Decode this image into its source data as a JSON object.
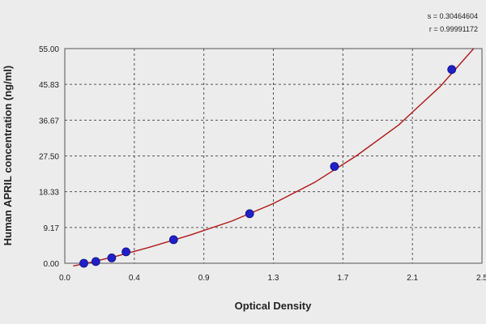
{
  "chart_data": {
    "type": "scatter",
    "title": "",
    "xlabel": "Optical Density",
    "ylabel": "Human APRIL concentration (ng/ml)",
    "xlim": [
      0.0,
      2.5
    ],
    "ylim": [
      0.0,
      55.0
    ],
    "x_tick_labels": [
      "0.0",
      "0.4",
      "0.9",
      "1.3",
      "1.7",
      "2.1",
      "2.5"
    ],
    "y_tick_labels": [
      "0.00",
      "9.17",
      "18.33",
      "27.50",
      "36.67",
      "45.83",
      "55.00"
    ],
    "grid": true,
    "stats": {
      "s_label": "s = 0.30464604",
      "r_label": "r = 0.99991172"
    },
    "series": [
      {
        "points": [
          {
            "x": 0.114,
            "y": 0.0
          },
          {
            "x": 0.186,
            "y": 0.43
          },
          {
            "x": 0.281,
            "y": 1.37
          },
          {
            "x": 0.367,
            "y": 2.93
          },
          {
            "x": 0.652,
            "y": 6.04
          },
          {
            "x": 1.108,
            "y": 12.71
          },
          {
            "x": 1.616,
            "y": 24.8
          },
          {
            "x": 2.319,
            "y": 49.64
          }
        ]
      }
    ],
    "fit_curve": {
      "x": [
        0.05,
        0.15,
        0.3,
        0.5,
        0.75,
        1.0,
        1.25,
        1.5,
        1.75,
        2.0,
        2.25,
        2.45
      ],
      "y": [
        -0.7,
        0.2,
        1.7,
        4.0,
        7.2,
        10.8,
        15.3,
        20.8,
        27.6,
        35.4,
        45.3,
        55.0
      ]
    },
    "colors": {
      "point": "#2020c8",
      "curve": "#b01818",
      "grid": "#555555",
      "frame": "#555555",
      "plot_bg": "#ececec"
    }
  }
}
